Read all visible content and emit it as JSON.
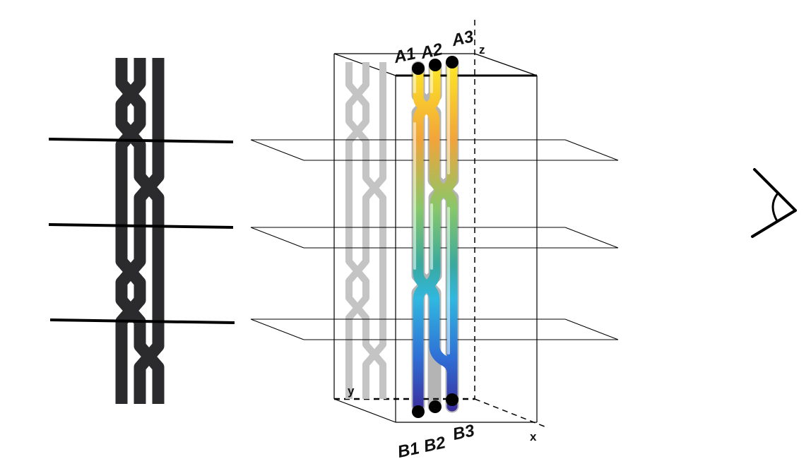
{
  "labels": {
    "top_strands": [
      "A1",
      "A2",
      "A3"
    ],
    "bottom_strands": [
      "B1",
      "B2",
      "B3"
    ],
    "axes": {
      "x": "x",
      "y": "y",
      "z": "z"
    }
  },
  "colors": {
    "braid_2d": "#2b2a2d",
    "projection": "#c4c4c4",
    "outline": "#000000",
    "gradient": [
      "#fde725",
      "#f2a43a",
      "#87c86a",
      "#3aa99e",
      "#30b8e0",
      "#2f6fd6",
      "#3b2fa0"
    ]
  },
  "icons": {
    "viewer": "eye-icon"
  }
}
